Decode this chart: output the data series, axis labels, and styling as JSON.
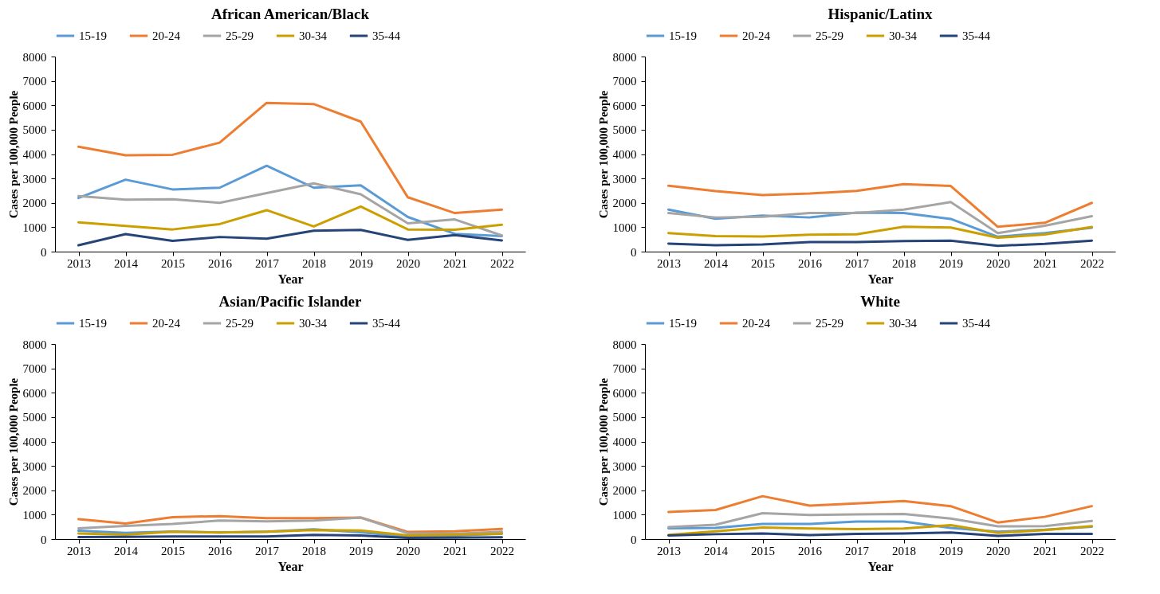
{
  "chart_data": [
    {
      "type": "line",
      "title": "African American/Black",
      "xlabel": "Year",
      "ylabel": "Cases per 100,000 People",
      "categories": [
        "2013",
        "2014",
        "2015",
        "2016",
        "2017",
        "2018",
        "2019",
        "2020",
        "2021",
        "2022"
      ],
      "ylim": [
        0,
        8000
      ],
      "yticks": [
        0,
        1000,
        2000,
        3000,
        4000,
        5000,
        6000,
        7000,
        8000
      ],
      "grid": false,
      "legend": "top",
      "series": [
        {
          "name": "15-19",
          "color": "#5b9bd5",
          "values": [
            2200,
            2950,
            2550,
            2620,
            3520,
            2620,
            2720,
            1420,
            730,
            640
          ]
        },
        {
          "name": "20-24",
          "color": "#ed7d31",
          "values": [
            4300,
            3950,
            3970,
            4470,
            6100,
            6050,
            5330,
            2230,
            1580,
            1720
          ]
        },
        {
          "name": "25-29",
          "color": "#a5a5a5",
          "values": [
            2280,
            2130,
            2150,
            2000,
            2400,
            2800,
            2350,
            1160,
            1320,
            660
          ]
        },
        {
          "name": "30-34",
          "color": "#cc9f00",
          "values": [
            1200,
            1050,
            910,
            1130,
            1700,
            1030,
            1850,
            910,
            900,
            1100
          ]
        },
        {
          "name": "35-44",
          "color": "#264478",
          "values": [
            260,
            720,
            440,
            600,
            530,
            860,
            890,
            480,
            680,
            460
          ]
        }
      ]
    },
    {
      "type": "line",
      "title": "Hispanic/Latinx",
      "xlabel": "Year",
      "ylabel": "Cases per 100,000 People",
      "categories": [
        "2013",
        "2014",
        "2015",
        "2016",
        "2017",
        "2018",
        "2019",
        "2020",
        "2021",
        "2022"
      ],
      "ylim": [
        0,
        8000
      ],
      "yticks": [
        0,
        1000,
        2000,
        3000,
        4000,
        5000,
        6000,
        7000,
        8000
      ],
      "grid": false,
      "legend": "top",
      "series": [
        {
          "name": "15-19",
          "color": "#5b9bd5",
          "values": [
            1720,
            1350,
            1480,
            1400,
            1600,
            1580,
            1340,
            610,
            760,
            980
          ]
        },
        {
          "name": "20-24",
          "color": "#ed7d31",
          "values": [
            2700,
            2480,
            2320,
            2380,
            2490,
            2770,
            2690,
            1020,
            1180,
            2000
          ]
        },
        {
          "name": "25-29",
          "color": "#a5a5a5",
          "values": [
            1580,
            1400,
            1430,
            1580,
            1580,
            1720,
            2030,
            760,
            1060,
            1450
          ]
        },
        {
          "name": "30-34",
          "color": "#cc9f00",
          "values": [
            760,
            640,
            620,
            690,
            710,
            1020,
            990,
            570,
            700,
            1010
          ]
        },
        {
          "name": "35-44",
          "color": "#264478",
          "values": [
            330,
            260,
            290,
            390,
            390,
            430,
            450,
            240,
            320,
            450
          ]
        }
      ]
    },
    {
      "type": "line",
      "title": "Asian/Pacific Islander",
      "xlabel": "Year",
      "ylabel": "Cases per 100,000 People",
      "categories": [
        "2013",
        "2014",
        "2015",
        "2016",
        "2017",
        "2018",
        "2019",
        "2020",
        "2021",
        "2022"
      ],
      "ylim": [
        0,
        8000
      ],
      "yticks": [
        0,
        1000,
        2000,
        3000,
        4000,
        5000,
        6000,
        7000,
        8000
      ],
      "grid": false,
      "legend": "top",
      "series": [
        {
          "name": "15-19",
          "color": "#5b9bd5",
          "values": [
            340,
            250,
            310,
            270,
            300,
            400,
            280,
            90,
            140,
            230
          ]
        },
        {
          "name": "20-24",
          "color": "#ed7d31",
          "values": [
            820,
            640,
            900,
            940,
            860,
            860,
            880,
            290,
            320,
            420
          ]
        },
        {
          "name": "25-29",
          "color": "#a5a5a5",
          "values": [
            440,
            540,
            620,
            760,
            730,
            760,
            880,
            240,
            220,
            300
          ]
        },
        {
          "name": "30-34",
          "color": "#cc9f00",
          "values": [
            230,
            180,
            300,
            270,
            300,
            370,
            350,
            150,
            180,
            210
          ]
        },
        {
          "name": "35-44",
          "color": "#264478",
          "values": [
            80,
            90,
            110,
            110,
            110,
            170,
            150,
            50,
            60,
            70
          ]
        }
      ]
    },
    {
      "type": "line",
      "title": "White",
      "xlabel": "Year",
      "ylabel": "Cases per 100,000 People",
      "categories": [
        "2013",
        "2014",
        "2015",
        "2016",
        "2017",
        "2018",
        "2019",
        "2020",
        "2021",
        "2022"
      ],
      "ylim": [
        0,
        8000
      ],
      "yticks": [
        0,
        1000,
        2000,
        3000,
        4000,
        5000,
        6000,
        7000,
        8000
      ],
      "grid": false,
      "legend": "top",
      "series": [
        {
          "name": "15-19",
          "color": "#5b9bd5",
          "values": [
            440,
            460,
            620,
            620,
            720,
            720,
            460,
            300,
            380,
            510
          ]
        },
        {
          "name": "20-24",
          "color": "#ed7d31",
          "values": [
            1110,
            1190,
            1760,
            1370,
            1460,
            1560,
            1350,
            680,
            910,
            1350
          ]
        },
        {
          "name": "25-29",
          "color": "#a5a5a5",
          "values": [
            490,
            590,
            1060,
            990,
            1010,
            1030,
            840,
            520,
            530,
            740
          ]
        },
        {
          "name": "30-34",
          "color": "#cc9f00",
          "values": [
            170,
            320,
            470,
            430,
            410,
            430,
            570,
            250,
            370,
            530
          ]
        },
        {
          "name": "35-44",
          "color": "#264478",
          "values": [
            150,
            200,
            230,
            160,
            210,
            230,
            270,
            130,
            210,
            210
          ]
        }
      ]
    }
  ]
}
